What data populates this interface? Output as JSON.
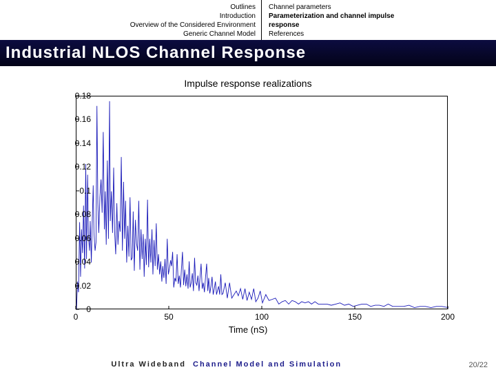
{
  "header": {
    "left_lines": [
      "Outlines",
      "Introduction",
      "Overview of the Considered Environment",
      "Generic Channel Model"
    ],
    "right_lines": [
      {
        "text": "Channel parameters",
        "bold": false
      },
      {
        "text": "Parameterization and channel impulse",
        "bold": true
      },
      {
        "text": "response",
        "bold": true
      },
      {
        "text": "References",
        "bold": false
      }
    ]
  },
  "title": "Industrial NLOS Channel Response",
  "chart": {
    "type": "line",
    "title": "Impulse response realizations",
    "xlabel": "Time (nS)",
    "xlim": [
      0,
      200
    ],
    "ylim": [
      0,
      0.18
    ],
    "xticks": [
      0,
      50,
      100,
      150,
      200
    ],
    "yticks": [
      0,
      0.02,
      0.04,
      0.06,
      0.08,
      0.1,
      0.12,
      0.14,
      0.16,
      0.18
    ],
    "line_color": "#1818b8",
    "line_width": 0.9,
    "axis_color": "#000000",
    "background_color": "#ffffff",
    "title_fontsize": 14,
    "label_fontsize": 13,
    "tick_fontsize": 12,
    "series_xy": [
      [
        0,
        0
      ],
      [
        0.6,
        0.024
      ],
      [
        1.1,
        0.015
      ],
      [
        1.7,
        0.074
      ],
      [
        2.2,
        0.028
      ],
      [
        2.7,
        0.068
      ],
      [
        3.3,
        0.048
      ],
      [
        3.8,
        0.088
      ],
      [
        4.4,
        0.035
      ],
      [
        5,
        0.123
      ],
      [
        5.4,
        0.043
      ],
      [
        6,
        0.114
      ],
      [
        6.4,
        0.064
      ],
      [
        7,
        0.05
      ],
      [
        7.4,
        0.075
      ],
      [
        8,
        0.04
      ],
      [
        8.4,
        0.07
      ],
      [
        9,
        0.105
      ],
      [
        9.4,
        0.065
      ],
      [
        10,
        0.05
      ],
      [
        10.5,
        0.057
      ],
      [
        11,
        0.172
      ],
      [
        11.5,
        0.09
      ],
      [
        12,
        0.065
      ],
      [
        12.6,
        0.095
      ],
      [
        13.2,
        0.11
      ],
      [
        13.8,
        0.082
      ],
      [
        14.4,
        0.15
      ],
      [
        15.0,
        0.068
      ],
      [
        15.5,
        0.1
      ],
      [
        16,
        0.055
      ],
      [
        16.6,
        0.126
      ],
      [
        17.2,
        0.06
      ],
      [
        17.8,
        0.176
      ],
      [
        18.2,
        0.075
      ],
      [
        18.8,
        0.1
      ],
      [
        19.4,
        0.065
      ],
      [
        20,
        0.12
      ],
      [
        20.5,
        0.066
      ],
      [
        21.1,
        0.047
      ],
      [
        21.7,
        0.09
      ],
      [
        22.3,
        0.055
      ],
      [
        22.9,
        0.075
      ],
      [
        23.5,
        0.066
      ],
      [
        24.1,
        0.129
      ],
      [
        24.7,
        0.05
      ],
      [
        25.3,
        0.108
      ],
      [
        25.9,
        0.06
      ],
      [
        26.4,
        0.092
      ],
      [
        27,
        0.04
      ],
      [
        27.6,
        0.071
      ],
      [
        28.2,
        0.045
      ],
      [
        28.8,
        0.095
      ],
      [
        29.4,
        0.042
      ],
      [
        30,
        0.044
      ],
      [
        30.5,
        0.083
      ],
      [
        31.1,
        0.033
      ],
      [
        31.7,
        0.076
      ],
      [
        32.3,
        0.056
      ],
      [
        32.9,
        0.05
      ],
      [
        33.5,
        0.092
      ],
      [
        34.1,
        0.034
      ],
      [
        34.7,
        0.068
      ],
      [
        35.3,
        0.043
      ],
      [
        35.9,
        0.064
      ],
      [
        36.4,
        0.028
      ],
      [
        37,
        0.06
      ],
      [
        37.6,
        0.038
      ],
      [
        38.2,
        0.093
      ],
      [
        38.8,
        0.036
      ],
      [
        39.4,
        0.06
      ],
      [
        40,
        0.04
      ],
      [
        40.6,
        0.068
      ],
      [
        41.1,
        0.03
      ],
      [
        41.7,
        0.059
      ],
      [
        42.3,
        0.037
      ],
      [
        42.9,
        0.073
      ],
      [
        43.5,
        0.034
      ],
      [
        44.1,
        0.047
      ],
      [
        44.7,
        0.03
      ],
      [
        45.3,
        0.041
      ],
      [
        45.9,
        0.024
      ],
      [
        46.4,
        0.037
      ],
      [
        47,
        0.027
      ],
      [
        47.6,
        0.043
      ],
      [
        48.2,
        0.022
      ],
      [
        48.8,
        0.06
      ],
      [
        49.4,
        0.03
      ],
      [
        50,
        0.035
      ],
      [
        50.6,
        0.042
      ],
      [
        51.1,
        0.037
      ],
      [
        51.7,
        0.049
      ],
      [
        52.3,
        0.019
      ],
      [
        52.9,
        0.027
      ],
      [
        53.5,
        0.024
      ],
      [
        54.1,
        0.047
      ],
      [
        54.7,
        0.022
      ],
      [
        55.3,
        0.029
      ],
      [
        55.9,
        0.019
      ],
      [
        56.4,
        0.034
      ],
      [
        57,
        0.049
      ],
      [
        57.6,
        0.021
      ],
      [
        58.2,
        0.034
      ],
      [
        58.8,
        0.02
      ],
      [
        59.4,
        0.03
      ],
      [
        60,
        0.018
      ],
      [
        60.6,
        0.041
      ],
      [
        61.1,
        0.019
      ],
      [
        61.7,
        0.023
      ],
      [
        62.3,
        0.031
      ],
      [
        62.9,
        0.016
      ],
      [
        63.5,
        0.044
      ],
      [
        64.1,
        0.023
      ],
      [
        64.7,
        0.021
      ],
      [
        65.3,
        0.029
      ],
      [
        65.9,
        0.016
      ],
      [
        66.4,
        0.027
      ],
      [
        67,
        0.039
      ],
      [
        67.6,
        0.018
      ],
      [
        68.2,
        0.023
      ],
      [
        68.8,
        0.015
      ],
      [
        69.4,
        0.028
      ],
      [
        70,
        0.039
      ],
      [
        70.6,
        0.016
      ],
      [
        71.1,
        0.027
      ],
      [
        71.7,
        0.014
      ],
      [
        72.3,
        0.02
      ],
      [
        72.9,
        0.028
      ],
      [
        73.5,
        0.013
      ],
      [
        74.1,
        0.018
      ],
      [
        74.7,
        0.024
      ],
      [
        75.3,
        0.013
      ],
      [
        75.9,
        0.017
      ],
      [
        76.4,
        0.02
      ],
      [
        77,
        0.013
      ],
      [
        77.6,
        0.03
      ],
      [
        78.2,
        0.013
      ],
      [
        78.8,
        0.014
      ],
      [
        80,
        0.023
      ],
      [
        81.1,
        0.01
      ],
      [
        82.3,
        0.023
      ],
      [
        83.5,
        0.01
      ],
      [
        84.7,
        0.013
      ],
      [
        85.9,
        0.016
      ],
      [
        87,
        0.012
      ],
      [
        88.2,
        0.018
      ],
      [
        89.4,
        0.009
      ],
      [
        90.6,
        0.018
      ],
      [
        91.7,
        0.008
      ],
      [
        92.9,
        0.015
      ],
      [
        94.1,
        0.009
      ],
      [
        95.3,
        0.018
      ],
      [
        96.4,
        0.007
      ],
      [
        97.6,
        0.01
      ],
      [
        98.8,
        0.016
      ],
      [
        100,
        0.006
      ],
      [
        101.8,
        0.013
      ],
      [
        103.5,
        0.008
      ],
      [
        105.3,
        0.009
      ],
      [
        107,
        0.01
      ],
      [
        108.8,
        0.005
      ],
      [
        110.6,
        0.007
      ],
      [
        112.3,
        0.008
      ],
      [
        114.1,
        0.005
      ],
      [
        115.9,
        0.008
      ],
      [
        117.6,
        0.007
      ],
      [
        119.4,
        0.005
      ],
      [
        121.1,
        0.007
      ],
      [
        122.9,
        0.006
      ],
      [
        124.7,
        0.007
      ],
      [
        126.4,
        0.005
      ],
      [
        128.2,
        0.007
      ],
      [
        130,
        0.005
      ],
      [
        132.3,
        0.005
      ],
      [
        134.7,
        0.005
      ],
      [
        137,
        0.004
      ],
      [
        139.4,
        0.005
      ],
      [
        141.7,
        0.006
      ],
      [
        144.1,
        0.004
      ],
      [
        146.4,
        0.005
      ],
      [
        148.8,
        0.003
      ],
      [
        151.1,
        0.004
      ],
      [
        153.5,
        0.005
      ],
      [
        155.9,
        0.005
      ],
      [
        158.2,
        0.003
      ],
      [
        160.6,
        0.004
      ],
      [
        162.9,
        0.004
      ],
      [
        165.3,
        0.003
      ],
      [
        167.6,
        0.005
      ],
      [
        170,
        0.003
      ],
      [
        172.9,
        0.003
      ],
      [
        175.9,
        0.003
      ],
      [
        178.8,
        0.004
      ],
      [
        181.7,
        0.002
      ],
      [
        184.7,
        0.003
      ],
      [
        187.6,
        0.003
      ],
      [
        190.6,
        0.002
      ],
      [
        193.5,
        0.003
      ],
      [
        196.4,
        0.003
      ],
      [
        200,
        0.002
      ]
    ]
  },
  "footer": {
    "left": "Ultra Wideband",
    "mid": "Channel Model and Simulation",
    "page": "20/22"
  }
}
